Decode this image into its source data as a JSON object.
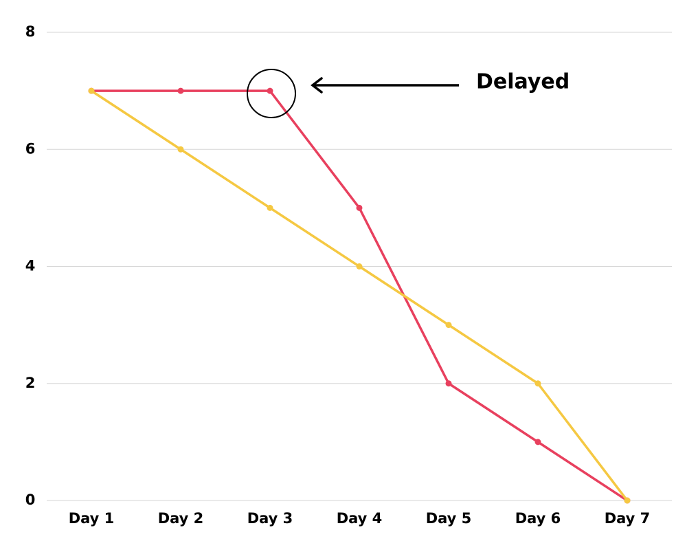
{
  "chart_data": {
    "type": "line",
    "categories": [
      "Day 1",
      "Day 2",
      "Day 3",
      "Day 4",
      "Day 5",
      "Day 6",
      "Day 7"
    ],
    "series": [
      {
        "color": "#e8405e",
        "values": [
          7,
          7,
          7,
          5,
          2,
          1,
          0
        ]
      },
      {
        "color": "#f5c842",
        "values": [
          7,
          6,
          5,
          4,
          3,
          2,
          0
        ]
      }
    ],
    "ylim": [
      0,
      8
    ],
    "yticks": [
      0,
      2,
      4,
      6,
      8
    ],
    "grid": true,
    "annotation": "Delayed"
  }
}
